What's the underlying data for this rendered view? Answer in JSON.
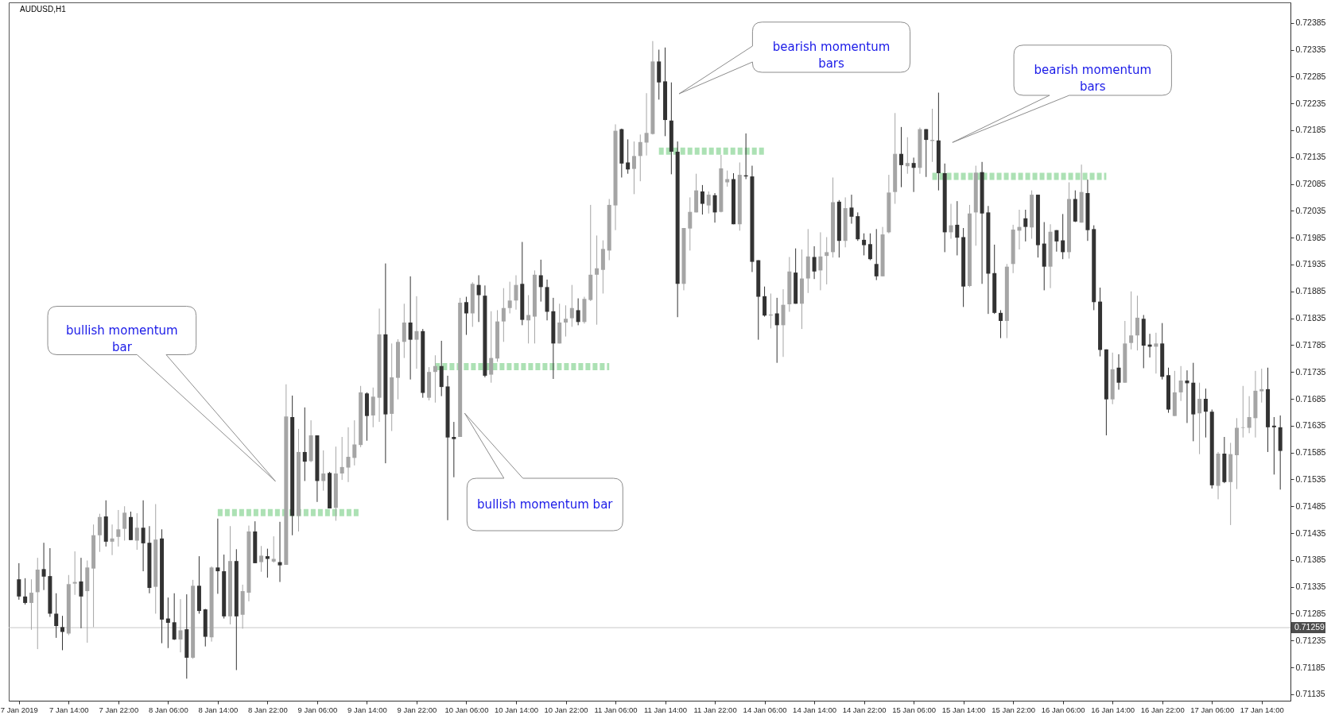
{
  "chart_data": {
    "type": "candlestick",
    "title": "AUDUSD,H1",
    "categories": [
      "7 Jan 2019",
      null,
      null,
      null,
      null,
      null,
      null,
      null,
      "7 Jan 14:00",
      null,
      null,
      null,
      null,
      null,
      null,
      null,
      "7 Jan 22:00",
      null,
      null,
      null,
      null,
      null,
      null,
      null,
      "8 Jan 06:00",
      null,
      null,
      null,
      null,
      null,
      null,
      null,
      "8 Jan 14:00",
      null,
      null,
      null,
      null,
      null,
      null,
      null,
      "8 Jan 22:00",
      null,
      null,
      null,
      null,
      null,
      null,
      null,
      "9 Jan 06:00",
      null,
      null,
      null,
      null,
      null,
      null,
      null,
      "9 Jan 14:00",
      null,
      null,
      null,
      null,
      null,
      null,
      null,
      "9 Jan 22:00",
      null,
      null,
      null,
      null,
      null,
      null,
      null,
      "10 Jan 06:00",
      null,
      null,
      null,
      null,
      null,
      null,
      null,
      "10 Jan 14:00",
      null,
      null,
      null,
      null,
      null,
      null,
      null,
      "10 Jan 22:00",
      null,
      null,
      null,
      null,
      null,
      null,
      null,
      "11 Jan 06:00",
      null,
      null,
      null,
      null,
      null,
      null,
      null,
      "11 Jan 14:00",
      null,
      null,
      null,
      null,
      null,
      null,
      null,
      "11 Jan 22:00",
      null,
      null,
      null,
      null,
      null,
      null,
      null,
      "14 Jan 06:00",
      null,
      null,
      null,
      null,
      null,
      null,
      null,
      "14 Jan 14:00",
      null,
      null,
      null,
      null,
      null,
      null,
      null,
      "14 Jan 22:00",
      null,
      null,
      null,
      null,
      null,
      null,
      null,
      "15 Jan 06:00",
      null,
      null,
      null,
      null,
      null,
      null,
      null,
      "15 Jan 14:00",
      null,
      null,
      null,
      null,
      null,
      null,
      null,
      "15 Jan 22:00",
      null,
      null,
      null,
      null,
      null,
      null,
      null,
      "16 Jan 06:00",
      null,
      null,
      null,
      null,
      null,
      null,
      null,
      "16 Jan 14:00",
      null,
      null,
      null,
      null,
      null,
      null,
      null,
      "16 Jan 22:00",
      null,
      null,
      null,
      null,
      null,
      null,
      null,
      "17 Jan 06:00",
      null,
      null,
      null,
      null,
      null,
      null,
      null,
      "17 Jan 14:00",
      null,
      null,
      null
    ],
    "ohlc": [
      [
        0.71349,
        0.71379,
        0.71311,
        0.71317
      ],
      [
        0.71317,
        0.71351,
        0.71302,
        0.71305
      ],
      [
        0.71305,
        0.71349,
        0.71255,
        0.71324
      ],
      [
        0.71325,
        0.71389,
        0.71219,
        0.71367
      ],
      [
        0.71368,
        0.71417,
        0.71329,
        0.71354
      ],
      [
        0.71355,
        0.71407,
        0.71279,
        0.71285
      ],
      [
        0.71285,
        0.71323,
        0.7124,
        0.71262
      ],
      [
        0.7126,
        0.71281,
        0.71217,
        0.71251
      ],
      [
        0.71248,
        0.71357,
        0.71245,
        0.7134
      ],
      [
        0.71341,
        0.71401,
        0.7132,
        0.71344
      ],
      [
        0.71345,
        0.71389,
        0.71258,
        0.71317
      ],
      [
        0.71327,
        0.71384,
        0.71231,
        0.71371
      ],
      [
        0.71369,
        0.71451,
        0.7126,
        0.71431
      ],
      [
        0.71431,
        0.71471,
        0.714,
        0.71465
      ],
      [
        0.71466,
        0.71496,
        0.7141,
        0.71419
      ],
      [
        0.71419,
        0.71451,
        0.71394,
        0.71425
      ],
      [
        0.71428,
        0.71478,
        0.7141,
        0.71442
      ],
      [
        0.71443,
        0.71485,
        0.71421,
        0.71473
      ],
      [
        0.71465,
        0.71475,
        0.71422,
        0.71422
      ],
      [
        0.71421,
        0.71472,
        0.71404,
        0.71445
      ],
      [
        0.71445,
        0.71496,
        0.71364,
        0.71416
      ],
      [
        0.71417,
        0.71448,
        0.71323,
        0.71333
      ],
      [
        0.71335,
        0.71489,
        0.71285,
        0.71423
      ],
      [
        0.71425,
        0.71442,
        0.7123,
        0.71274
      ],
      [
        0.71276,
        0.71315,
        0.71221,
        0.71268
      ],
      [
        0.71269,
        0.71323,
        0.71236,
        0.71237
      ],
      [
        0.71237,
        0.71312,
        0.71213,
        0.71254
      ],
      [
        0.71256,
        0.71321,
        0.71164,
        0.71203
      ],
      [
        0.71203,
        0.71348,
        0.71201,
        0.71337
      ],
      [
        0.71337,
        0.71392,
        0.71285,
        0.7129
      ],
      [
        0.71293,
        0.71294,
        0.71224,
        0.71242
      ],
      [
        0.71241,
        0.71373,
        0.71233,
        0.71371
      ],
      [
        0.71371,
        0.71462,
        0.71322,
        0.71364
      ],
      [
        0.71364,
        0.71395,
        0.71276,
        0.7128
      ],
      [
        0.7128,
        0.71448,
        0.71265,
        0.71383
      ],
      [
        0.71383,
        0.71405,
        0.7118,
        0.7128
      ],
      [
        0.71283,
        0.71339,
        0.71257,
        0.71327
      ],
      [
        0.71324,
        0.71449,
        0.71308,
        0.71438
      ],
      [
        0.71438,
        0.71457,
        0.71379,
        0.71379
      ],
      [
        0.71381,
        0.71411,
        0.71363,
        0.71393
      ],
      [
        0.71392,
        0.71406,
        0.71352,
        0.71387
      ],
      [
        0.71382,
        0.71429,
        0.7138,
        0.71387
      ],
      [
        0.71381,
        0.71456,
        0.71344,
        0.71375
      ],
      [
        0.71376,
        0.71712,
        0.71376,
        0.71652
      ],
      [
        0.71651,
        0.71691,
        0.71431,
        0.71467
      ],
      [
        0.71467,
        0.71629,
        0.71438,
        0.71586
      ],
      [
        0.71586,
        0.71669,
        0.71532,
        0.71568
      ],
      [
        0.71569,
        0.71645,
        0.71567,
        0.71617
      ],
      [
        0.71617,
        0.71617,
        0.71493,
        0.71532
      ],
      [
        0.71532,
        0.71589,
        0.71514,
        0.71546
      ],
      [
        0.71547,
        0.71549,
        0.71481,
        0.71481
      ],
      [
        0.71482,
        0.71596,
        0.71458,
        0.71546
      ],
      [
        0.71546,
        0.71614,
        0.71534,
        0.71558
      ],
      [
        0.71557,
        0.71632,
        0.7153,
        0.71577
      ],
      [
        0.71575,
        0.71645,
        0.71561,
        0.716
      ],
      [
        0.71599,
        0.71709,
        0.71595,
        0.71697
      ],
      [
        0.71695,
        0.71697,
        0.71607,
        0.71653
      ],
      [
        0.71654,
        0.71706,
        0.71632,
        0.71689
      ],
      [
        0.71687,
        0.71853,
        0.71642,
        0.71805
      ],
      [
        0.71805,
        0.71937,
        0.71565,
        0.71656
      ],
      [
        0.71657,
        0.71788,
        0.71625,
        0.71725
      ],
      [
        0.71724,
        0.71796,
        0.71684,
        0.71791
      ],
      [
        0.71791,
        0.71862,
        0.71761,
        0.71827
      ],
      [
        0.71827,
        0.71913,
        0.71721,
        0.71795
      ],
      [
        0.71795,
        0.71876,
        0.71741,
        0.71811
      ],
      [
        0.71811,
        0.71815,
        0.71687,
        0.71696
      ],
      [
        0.71687,
        0.71744,
        0.71682,
        0.71735
      ],
      [
        0.71735,
        0.71766,
        0.71678,
        0.71746
      ],
      [
        0.71746,
        0.71793,
        0.7169,
        0.71707
      ],
      [
        0.71708,
        0.71728,
        0.71459,
        0.71613
      ],
      [
        0.71614,
        0.71642,
        0.71539,
        0.7161
      ],
      [
        0.71614,
        0.71873,
        0.71614,
        0.71864
      ],
      [
        0.71865,
        0.71875,
        0.71804,
        0.71844
      ],
      [
        0.71844,
        0.71902,
        0.71819,
        0.71899
      ],
      [
        0.71897,
        0.71915,
        0.71828,
        0.71878
      ],
      [
        0.71877,
        0.71896,
        0.71725,
        0.71728
      ],
      [
        0.7173,
        0.71848,
        0.71715,
        0.71761
      ],
      [
        0.7176,
        0.7185,
        0.71754,
        0.71829
      ],
      [
        0.71829,
        0.71891,
        0.71791,
        0.71854
      ],
      [
        0.71854,
        0.71903,
        0.71844,
        0.71868
      ],
      [
        0.71868,
        0.71915,
        0.71851,
        0.71897
      ],
      [
        0.71899,
        0.71977,
        0.71822,
        0.71832
      ],
      [
        0.71831,
        0.71878,
        0.71788,
        0.71841
      ],
      [
        0.71838,
        0.71924,
        0.71788,
        0.71916
      ],
      [
        0.71915,
        0.71944,
        0.71866,
        0.71893
      ],
      [
        0.71893,
        0.71907,
        0.71831,
        0.71847
      ],
      [
        0.71848,
        0.71873,
        0.71722,
        0.71788
      ],
      [
        0.71788,
        0.71862,
        0.71788,
        0.71827
      ],
      [
        0.71827,
        0.71859,
        0.71801,
        0.71834
      ],
      [
        0.71835,
        0.71897,
        0.71819,
        0.71854
      ],
      [
        0.7185,
        0.71872,
        0.71822,
        0.71828
      ],
      [
        0.71828,
        0.71875,
        0.71825,
        0.71871
      ],
      [
        0.71869,
        0.72046,
        0.71867,
        0.71916
      ],
      [
        0.71916,
        0.71989,
        0.71823,
        0.71928
      ],
      [
        0.71925,
        0.7198,
        0.71881,
        0.71964
      ],
      [
        0.71961,
        0.72057,
        0.71943,
        0.72046
      ],
      [
        0.72045,
        0.72196,
        0.71999,
        0.72184
      ],
      [
        0.72187,
        0.72188,
        0.72097,
        0.72123
      ],
      [
        0.72125,
        0.72168,
        0.72104,
        0.72112
      ],
      [
        0.72113,
        0.72164,
        0.72066,
        0.72137
      ],
      [
        0.72137,
        0.72177,
        0.7209,
        0.72163
      ],
      [
        0.72162,
        0.72254,
        0.72138,
        0.7218
      ],
      [
        0.72178,
        0.72351,
        0.72177,
        0.72313
      ],
      [
        0.72313,
        0.72335,
        0.72242,
        0.72274
      ],
      [
        0.72276,
        0.72339,
        0.72174,
        0.72204
      ],
      [
        0.72203,
        0.72274,
        0.72103,
        0.72145
      ],
      [
        0.72145,
        0.72164,
        0.71837,
        0.71899
      ],
      [
        0.71899,
        0.72003,
        0.71887,
        0.72003
      ],
      [
        0.72002,
        0.7206,
        0.71961,
        0.72033
      ],
      [
        0.72032,
        0.72104,
        0.72032,
        0.72073
      ],
      [
        0.72071,
        0.72083,
        0.72028,
        0.72048
      ],
      [
        0.72045,
        0.72071,
        0.7203,
        0.72065
      ],
      [
        0.72064,
        0.72068,
        0.72013,
        0.72032
      ],
      [
        0.72033,
        0.72139,
        0.72032,
        0.72114
      ],
      [
        0.72088,
        0.7211,
        0.7208,
        0.72094
      ],
      [
        0.72094,
        0.72105,
        0.7201,
        0.7201
      ],
      [
        0.7201,
        0.72125,
        0.71998,
        0.72102
      ],
      [
        0.72101,
        0.72179,
        0.72094,
        0.72099
      ],
      [
        0.72099,
        0.72119,
        0.71921,
        0.7194
      ],
      [
        0.71943,
        0.71943,
        0.71795,
        0.71875
      ],
      [
        0.71876,
        0.71894,
        0.71838,
        0.7184
      ],
      [
        0.7184,
        0.71881,
        0.71816,
        0.71842
      ],
      [
        0.71844,
        0.71873,
        0.71752,
        0.71822
      ],
      [
        0.71822,
        0.71889,
        0.71763,
        0.7186
      ],
      [
        0.71861,
        0.71949,
        0.71847,
        0.71922
      ],
      [
        0.7192,
        0.71965,
        0.71862,
        0.71862
      ],
      [
        0.71862,
        0.71963,
        0.71815,
        0.71909
      ],
      [
        0.71909,
        0.72001,
        0.71882,
        0.7195
      ],
      [
        0.71949,
        0.71969,
        0.71908,
        0.71922
      ],
      [
        0.71924,
        0.71995,
        0.71887,
        0.7195
      ],
      [
        0.71951,
        0.71986,
        0.71898,
        0.71958
      ],
      [
        0.71958,
        0.72097,
        0.71948,
        0.72051
      ],
      [
        0.72052,
        0.72055,
        0.71948,
        0.71979
      ],
      [
        0.71979,
        0.7206,
        0.71967,
        0.7204
      ],
      [
        0.72041,
        0.72065,
        0.72011,
        0.72024
      ],
      [
        0.72025,
        0.72032,
        0.71979,
        0.71982
      ],
      [
        0.71981,
        0.71993,
        0.71952,
        0.71971
      ],
      [
        0.71973,
        0.71993,
        0.71943,
        0.71945
      ],
      [
        0.71936,
        0.72001,
        0.71906,
        0.71913
      ],
      [
        0.71913,
        0.72005,
        0.71913,
        0.71991
      ],
      [
        0.71995,
        0.72102,
        0.71993,
        0.72069
      ],
      [
        0.7207,
        0.72217,
        0.72048,
        0.72141
      ],
      [
        0.72141,
        0.72191,
        0.72079,
        0.7212
      ],
      [
        0.72118,
        0.72172,
        0.72104,
        0.72124
      ],
      [
        0.72124,
        0.72134,
        0.7207,
        0.72115
      ],
      [
        0.72115,
        0.7219,
        0.72104,
        0.72187
      ],
      [
        0.72187,
        0.72187,
        0.72098,
        0.72167
      ],
      [
        0.72165,
        0.72225,
        0.72126,
        0.72167
      ],
      [
        0.72166,
        0.72255,
        0.72073,
        0.72105
      ],
      [
        0.72105,
        0.72123,
        0.71958,
        0.71995
      ],
      [
        0.71995,
        0.72048,
        0.71983,
        0.72008
      ],
      [
        0.72009,
        0.72053,
        0.71952,
        0.71985
      ],
      [
        0.71986,
        0.72003,
        0.71856,
        0.71894
      ],
      [
        0.71895,
        0.72046,
        0.71893,
        0.7203
      ],
      [
        0.72032,
        0.72119,
        0.7197,
        0.72106
      ],
      [
        0.72107,
        0.72126,
        0.71899,
        0.7203
      ],
      [
        0.72032,
        0.72044,
        0.71843,
        0.71918
      ],
      [
        0.71919,
        0.71972,
        0.71843,
        0.71845
      ],
      [
        0.71845,
        0.7185,
        0.71798,
        0.7183
      ],
      [
        0.7183,
        0.71936,
        0.71798,
        0.71931
      ],
      [
        0.71936,
        0.72009,
        0.71919,
        0.72
      ],
      [
        0.71998,
        0.72037,
        0.71963,
        0.72005
      ],
      [
        0.72021,
        0.72037,
        0.71978,
        0.72005
      ],
      [
        0.72004,
        0.72073,
        0.71983,
        0.72065
      ],
      [
        0.72065,
        0.72065,
        0.71948,
        0.71971
      ],
      [
        0.71974,
        0.72014,
        0.71887,
        0.71931
      ],
      [
        0.71931,
        0.7201,
        0.71891,
        0.71996
      ],
      [
        0.71999,
        0.71999,
        0.71959,
        0.71978
      ],
      [
        0.7198,
        0.72029,
        0.71945,
        0.71958
      ],
      [
        0.71958,
        0.72088,
        0.71946,
        0.72057
      ],
      [
        0.72057,
        0.72073,
        0.72014,
        0.72015
      ],
      [
        0.72013,
        0.72121,
        0.72013,
        0.7207
      ],
      [
        0.72068,
        0.72093,
        0.71979,
        0.71999
      ],
      [
        0.72001,
        0.72008,
        0.7185,
        0.71865
      ],
      [
        0.71866,
        0.71892,
        0.71764,
        0.71776
      ],
      [
        0.71777,
        0.71777,
        0.71617,
        0.71684
      ],
      [
        0.71684,
        0.71771,
        0.71675,
        0.7174
      ],
      [
        0.71743,
        0.71768,
        0.71702,
        0.71715
      ],
      [
        0.71715,
        0.7183,
        0.71715,
        0.71788
      ],
      [
        0.71789,
        0.71885,
        0.71777,
        0.71803
      ],
      [
        0.71803,
        0.71877,
        0.71775,
        0.71836
      ],
      [
        0.71834,
        0.71841,
        0.71742,
        0.71784
      ],
      [
        0.71786,
        0.71806,
        0.71762,
        0.71782
      ],
      [
        0.71782,
        0.71808,
        0.71732,
        0.71788
      ],
      [
        0.71788,
        0.71826,
        0.71721,
        0.71726
      ],
      [
        0.71729,
        0.71743,
        0.71659,
        0.71665
      ],
      [
        0.71653,
        0.71737,
        0.71653,
        0.71697
      ],
      [
        0.71697,
        0.71746,
        0.71681,
        0.71719
      ],
      [
        0.71719,
        0.71738,
        0.7164,
        0.71714
      ],
      [
        0.71715,
        0.71752,
        0.71606,
        0.71656
      ],
      [
        0.71658,
        0.71715,
        0.71582,
        0.71685
      ],
      [
        0.71685,
        0.71704,
        0.71613,
        0.71661
      ],
      [
        0.71661,
        0.71665,
        0.71518,
        0.71524
      ],
      [
        0.71523,
        0.71586,
        0.71498,
        0.71583
      ],
      [
        0.71583,
        0.71614,
        0.71528,
        0.7153
      ],
      [
        0.7153,
        0.71603,
        0.7145,
        0.71582
      ],
      [
        0.7158,
        0.71649,
        0.71517,
        0.71631
      ],
      [
        0.71631,
        0.71709,
        0.71613,
        0.71632
      ],
      [
        0.71631,
        0.7169,
        0.71621,
        0.71651
      ],
      [
        0.71649,
        0.71737,
        0.71613,
        0.717
      ],
      [
        0.71699,
        0.71741,
        0.71678,
        0.71703
      ],
      [
        0.71703,
        0.71743,
        0.71586,
        0.71632
      ],
      [
        0.71635,
        0.71651,
        0.71544,
        0.71632
      ],
      [
        0.71632,
        0.71654,
        0.71516,
        0.71588
      ]
    ],
    "colors": [
      "#333333",
      "#333333",
      "#a5a5a5",
      "#a5a5a5",
      "#333333",
      "#333333",
      "#333333",
      "#333333",
      "#a5a5a5",
      "#a5a5a5",
      "#333333",
      "#a5a5a5",
      "#a5a5a5",
      "#a5a5a5",
      "#333333",
      "#a5a5a5",
      "#a5a5a5",
      "#a5a5a5",
      "#333333",
      "#a5a5a5",
      "#333333",
      "#333333",
      "#a5a5a5",
      "#333333",
      "#333333",
      "#333333",
      "#a5a5a5",
      "#333333",
      "#a5a5a5",
      "#333333",
      "#333333",
      "#a5a5a5",
      "#333333",
      "#333333",
      "#a5a5a5",
      "#333333",
      "#a5a5a5",
      "#a5a5a5",
      "#333333",
      "#a5a5a5",
      "#333333",
      "#a5a5a5",
      "#333333",
      "#a5a5a5",
      "#333333",
      "#a5a5a5",
      "#333333",
      "#a5a5a5",
      "#333333",
      "#a5a5a5",
      "#333333",
      "#a5a5a5",
      "#a5a5a5",
      "#a5a5a5",
      "#a5a5a5",
      "#a5a5a5",
      "#333333",
      "#a5a5a5",
      "#a5a5a5",
      "#333333",
      "#a5a5a5",
      "#a5a5a5",
      "#a5a5a5",
      "#333333",
      "#a5a5a5",
      "#333333",
      "#a5a5a5",
      "#a5a5a5",
      "#333333",
      "#333333",
      "#333333",
      "#a5a5a5",
      "#333333",
      "#a5a5a5",
      "#333333",
      "#333333",
      "#a5a5a5",
      "#a5a5a5",
      "#a5a5a5",
      "#a5a5a5",
      "#a5a5a5",
      "#333333",
      "#a5a5a5",
      "#a5a5a5",
      "#333333",
      "#333333",
      "#333333",
      "#a5a5a5",
      "#a5a5a5",
      "#a5a5a5",
      "#333333",
      "#a5a5a5",
      "#a5a5a5",
      "#a5a5a5",
      "#a5a5a5",
      "#a5a5a5",
      "#a5a5a5",
      "#333333",
      "#333333",
      "#a5a5a5",
      "#a5a5a5",
      "#a5a5a5",
      "#a5a5a5",
      "#333333",
      "#333333",
      "#333333",
      "#333333",
      "#a5a5a5",
      "#a5a5a5",
      "#a5a5a5",
      "#333333",
      "#a5a5a5",
      "#333333",
      "#a5a5a5",
      "#a5a5a5",
      "#333333",
      "#a5a5a5",
      "#333333",
      "#333333",
      "#333333",
      "#333333",
      "#a5a5a5",
      "#333333",
      "#a5a5a5",
      "#a5a5a5",
      "#333333",
      "#a5a5a5",
      "#a5a5a5",
      "#333333",
      "#a5a5a5",
      "#a5a5a5",
      "#a5a5a5",
      "#333333",
      "#a5a5a5",
      "#333333",
      "#333333",
      "#333333",
      "#333333",
      "#333333",
      "#a5a5a5",
      "#a5a5a5",
      "#a5a5a5",
      "#333333",
      "#a5a5a5",
      "#333333",
      "#a5a5a5",
      "#333333",
      "#a5a5a5",
      "#333333",
      "#333333",
      "#a5a5a5",
      "#333333",
      "#333333",
      "#a5a5a5",
      "#a5a5a5",
      "#333333",
      "#333333",
      "#333333",
      "#333333",
      "#a5a5a5",
      "#a5a5a5",
      "#a5a5a5",
      "#333333",
      "#a5a5a5",
      "#333333",
      "#333333",
      "#a5a5a5",
      "#333333",
      "#333333",
      "#a5a5a5",
      "#333333",
      "#a5a5a5",
      "#333333",
      "#333333",
      "#333333",
      "#333333",
      "#a5a5a5",
      "#333333",
      "#a5a5a5",
      "#a5a5a5",
      "#a5a5a5",
      "#333333",
      "#333333",
      "#a5a5a5",
      "#333333",
      "#333333",
      "#a5a5a5",
      "#a5a5a5",
      "#333333",
      "#333333",
      "#a5a5a5",
      "#333333",
      "#333333",
      "#a5a5a5",
      "#333333",
      "#a5a5a5",
      "#a5a5a5",
      "#a5a5a5",
      "#a5a5a5",
      "#a5a5a5",
      "#a5a5a5",
      "#333333",
      "#333333",
      "#333333"
    ],
    "series": [
      {
        "type": "line",
        "color": "#2fb344",
        "line_style": "dashed",
        "values": [
          null,
          null,
          null,
          null,
          null,
          null,
          null,
          null,
          null,
          null,
          null,
          null,
          null,
          null,
          null,
          null,
          null,
          null,
          null,
          null,
          null,
          null,
          null,
          null,
          null,
          null,
          null,
          null,
          null,
          null,
          null,
          null,
          0.71473,
          0.71473,
          0.71473,
          0.71473,
          0.71473,
          0.71473,
          0.71473,
          0.71473,
          0.71473,
          0.71473,
          0.71473,
          0.71473,
          0.71473,
          0.71473,
          0.71473,
          0.71473,
          0.71473,
          0.71473,
          0.71473,
          0.71473,
          0.71473,
          0.71473,
          0.71473,
          0.71473,
          null,
          null,
          null,
          null,
          null,
          null,
          null,
          null,
          null,
          null,
          null,
          0.71745,
          0.71745,
          0.71745,
          0.71745,
          0.71745,
          0.71745,
          0.71745,
          0.71745,
          0.71745,
          0.71745,
          0.71745,
          0.71745,
          0.71745,
          0.71745,
          0.71745,
          0.71745,
          0.71745,
          0.71745,
          0.71745,
          0.71745,
          0.71745,
          0.71745,
          0.71745,
          0.71745,
          0.71745,
          0.71745,
          0.71745,
          0.71745,
          0.71745,
          null,
          null,
          null,
          null,
          null,
          null,
          null,
          0.72146,
          0.72146,
          0.72146,
          0.72146,
          0.72146,
          0.72146,
          0.72146,
          0.72146,
          0.72146,
          0.72146,
          0.72146,
          0.72146,
          0.72146,
          0.72146,
          0.72146,
          0.72146,
          0.72146,
          0.72146,
          null,
          null,
          null,
          null,
          null,
          null,
          null,
          null,
          null,
          null,
          null,
          null,
          null,
          null,
          null,
          null,
          null,
          null,
          null,
          null,
          null,
          null,
          null,
          null,
          null,
          null,
          0.72099,
          0.72099,
          0.72099,
          0.72099,
          0.72099,
          0.72099,
          0.72099,
          0.72099,
          0.72099,
          0.72099,
          0.72099,
          0.72099,
          0.72099,
          0.72099,
          0.72099,
          0.72099,
          0.72099,
          0.72099,
          0.72099,
          0.72099,
          0.72099,
          0.72099,
          0.72099,
          0.72099,
          0.72099,
          0.72099,
          0.72099,
          0.72099,
          0.72099,
          null,
          null,
          null,
          null,
          null,
          null,
          null,
          null,
          null,
          null,
          null,
          null,
          null,
          null,
          null,
          null,
          null,
          null,
          null,
          null,
          null,
          null,
          null,
          null,
          null,
          null,
          null,
          null
        ]
      }
    ],
    "ylim": [
      0.71123,
      0.72423
    ],
    "yticks": [
      0.71135,
      0.71185,
      0.71235,
      0.71285,
      0.71335,
      0.71385,
      0.71435,
      0.71485,
      0.71535,
      0.71585,
      0.71635,
      0.71685,
      0.71735,
      0.71785,
      0.71835,
      0.71885,
      0.71935,
      0.71985,
      0.72035,
      0.72085,
      0.72135,
      0.72185,
      0.72235,
      0.72285,
      0.72335,
      0.72385
    ],
    "grid": false,
    "ref_lines": [
      {
        "axis": "y",
        "value": 0.71259,
        "label": "0.71259",
        "color": "#c8c8c8"
      }
    ],
    "annotations": [
      "bullish momentum bar",
      "bullish momentum bar",
      "bearish momentum bars",
      "bearish momentum bars"
    ]
  }
}
